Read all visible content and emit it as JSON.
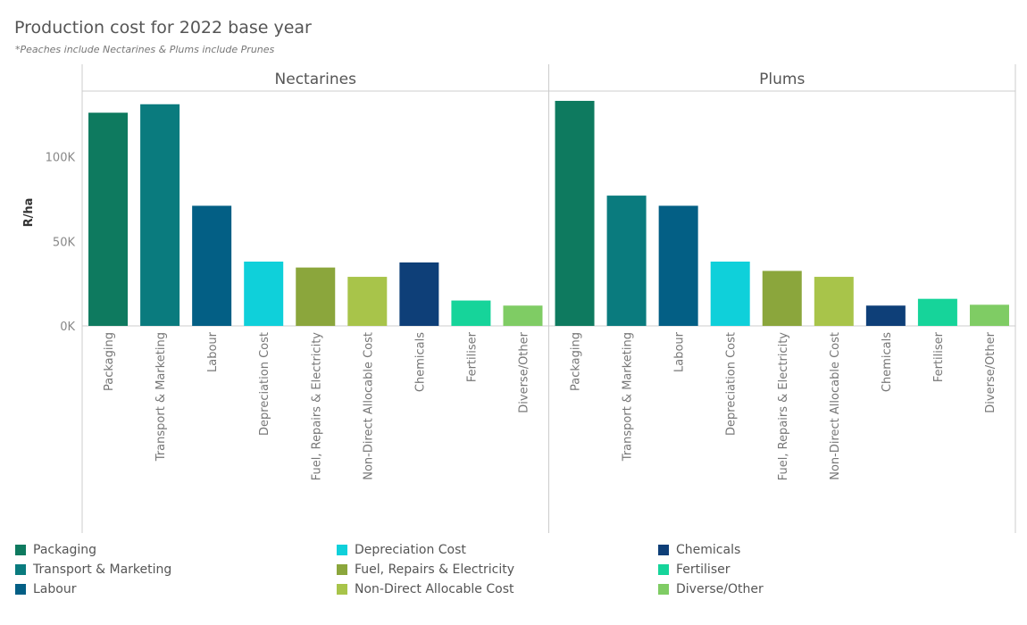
{
  "title": "Production cost for 2022 base year",
  "subtitle": "*Peaches include Nectarines & Plums include Prunes",
  "chart_data": {
    "type": "bar",
    "ylabel": "R/ha",
    "ylim": [
      0,
      140000
    ],
    "yticks": [
      0,
      50000,
      100000
    ],
    "ytick_labels": [
      "0K",
      "50K",
      "100K"
    ],
    "grid": false,
    "legend_position": "bottom",
    "categories": [
      "Packaging",
      "Transport & Marketing",
      "Labour",
      "Depreciation Cost",
      "Fuel, Repairs & Electricity",
      "Non-Direct Allocable Cost",
      "Chemicals",
      "Fertiliser",
      "Diverse/Other"
    ],
    "colors": [
      "#0e7a5f",
      "#0a7b7e",
      "#035f85",
      "#0fd0da",
      "#8ba63c",
      "#a8c44a",
      "#0e3f78",
      "#16d49a",
      "#7fcc64"
    ],
    "panels": [
      {
        "name": "Nectarines",
        "values": [
          126000,
          131000,
          71000,
          38000,
          34500,
          29000,
          37500,
          15000,
          12000
        ]
      },
      {
        "name": "Plums",
        "values": [
          133000,
          77000,
          71000,
          38000,
          32500,
          29000,
          12000,
          16000,
          12500
        ]
      }
    ]
  },
  "legend": [
    {
      "label": "Packaging",
      "color": "#0e7a5f"
    },
    {
      "label": "Transport & Marketing",
      "color": "#0a7b7e"
    },
    {
      "label": "Labour",
      "color": "#035f85"
    },
    {
      "label": "Depreciation Cost",
      "color": "#0fd0da"
    },
    {
      "label": "Fuel, Repairs & Electricity",
      "color": "#8ba63c"
    },
    {
      "label": "Non-Direct Allocable Cost",
      "color": "#a8c44a"
    },
    {
      "label": "Chemicals",
      "color": "#0e3f78"
    },
    {
      "label": "Fertiliser",
      "color": "#16d49a"
    },
    {
      "label": "Diverse/Other",
      "color": "#7fcc64"
    }
  ]
}
